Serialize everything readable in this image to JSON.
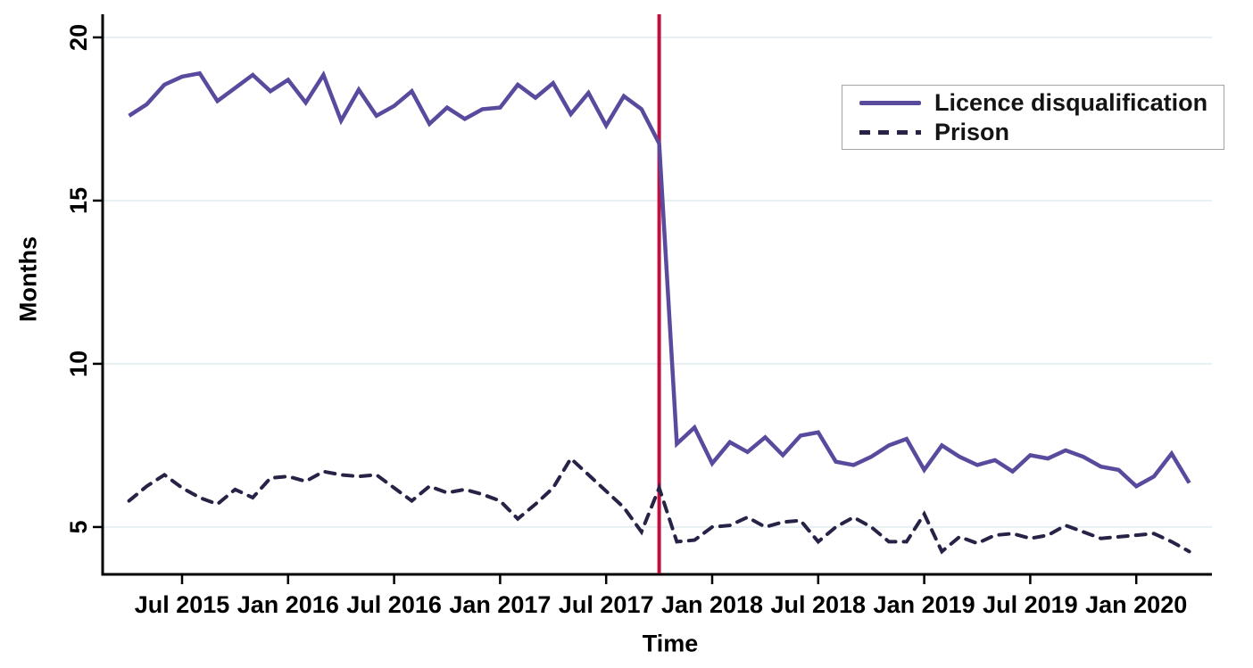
{
  "figure": {
    "y_axis_title": "Months",
    "x_axis_title": "Time"
  },
  "colors": {
    "licence_line": "#5a4a9e",
    "prison_line": "#262347",
    "reference_line": "#c10f3f",
    "gridline": "#e6eff1",
    "axis": "#000000",
    "legend_border": "#a4a4a4",
    "text": "#000000"
  },
  "chart_data": {
    "type": "line",
    "title": "",
    "xlabel": "Time",
    "ylabel": "Months",
    "grid": "horizontal",
    "ylim": [
      3.55,
      20.6
    ],
    "y_ticks": [
      5,
      10,
      15,
      20
    ],
    "x_tick_labels": [
      "Jul 2015",
      "Jan 2016",
      "Jul 2016",
      "Jan 2017",
      "Jul 2017",
      "Jan 2018",
      "Jul 2018",
      "Jan 2019",
      "Jul 2019",
      "Jan 2020"
    ],
    "x_tick_month_indices": [
      3,
      9,
      15,
      21,
      27,
      33,
      39,
      45,
      51,
      57
    ],
    "months": [
      "Apr 2015",
      "May 2015",
      "Jun 2015",
      "Jul 2015",
      "Aug 2015",
      "Sep 2015",
      "Oct 2015",
      "Nov 2015",
      "Dec 2015",
      "Jan 2016",
      "Feb 2016",
      "Mar 2016",
      "Apr 2016",
      "May 2016",
      "Jun 2016",
      "Jul 2016",
      "Aug 2016",
      "Sep 2016",
      "Oct 2016",
      "Nov 2016",
      "Dec 2016",
      "Jan 2017",
      "Feb 2017",
      "Mar 2017",
      "Apr 2017",
      "May 2017",
      "Jun 2017",
      "Jul 2017",
      "Aug 2017",
      "Sep 2017",
      "Oct 2017",
      "Nov 2017",
      "Dec 2017",
      "Jan 2018",
      "Feb 2018",
      "Mar 2018",
      "Apr 2018",
      "May 2018",
      "Jun 2018",
      "Jul 2018",
      "Aug 2018",
      "Sep 2018",
      "Oct 2018",
      "Nov 2018",
      "Dec 2018",
      "Jan 2019",
      "Feb 2019",
      "Mar 2019",
      "Apr 2019",
      "May 2019",
      "Jun 2019",
      "Jul 2019",
      "Aug 2019",
      "Sep 2019",
      "Oct 2019",
      "Nov 2019",
      "Dec 2019",
      "Jan 2020",
      "Feb 2020",
      "Mar 2020",
      "Apr 2020"
    ],
    "series": [
      {
        "name": "Licence disqualification",
        "style": "solid",
        "color": "#5a4a9e",
        "values": [
          17.6,
          17.95,
          18.55,
          18.8,
          18.9,
          18.05,
          18.45,
          18.85,
          18.35,
          18.7,
          18.0,
          18.85,
          17.45,
          18.4,
          17.6,
          17.9,
          18.35,
          17.35,
          17.85,
          17.5,
          17.8,
          17.85,
          18.55,
          18.15,
          18.6,
          17.65,
          18.3,
          17.3,
          18.2,
          17.8,
          16.75,
          7.55,
          8.05,
          6.95,
          7.6,
          7.3,
          7.75,
          7.2,
          7.8,
          7.9,
          7.0,
          6.9,
          7.15,
          7.5,
          7.7,
          6.75,
          7.5,
          7.15,
          6.9,
          7.05,
          6.7,
          7.2,
          7.1,
          7.35,
          7.15,
          6.85,
          6.75,
          6.25,
          6.55,
          7.25,
          6.35
        ]
      },
      {
        "name": "Prison",
        "style": "dashed",
        "color": "#262347",
        "values": [
          5.8,
          6.25,
          6.6,
          6.2,
          5.9,
          5.7,
          6.15,
          5.9,
          6.5,
          6.55,
          6.4,
          6.7,
          6.6,
          6.55,
          6.6,
          6.2,
          5.8,
          6.25,
          6.05,
          6.15,
          6.0,
          5.8,
          5.25,
          5.7,
          6.2,
          7.1,
          6.6,
          6.1,
          5.6,
          4.85,
          6.2,
          4.55,
          4.6,
          5.0,
          5.05,
          5.3,
          5.0,
          5.15,
          5.2,
          4.55,
          5.0,
          5.3,
          5.0,
          4.55,
          4.55,
          5.4,
          4.25,
          4.7,
          4.5,
          4.75,
          4.8,
          4.65,
          4.75,
          5.05,
          4.85,
          4.65,
          4.7,
          4.75,
          4.8,
          4.55,
          4.25
        ]
      }
    ],
    "reference_line": {
      "month": "Oct 2017",
      "month_index": 30,
      "color": "#c10f3f"
    }
  }
}
